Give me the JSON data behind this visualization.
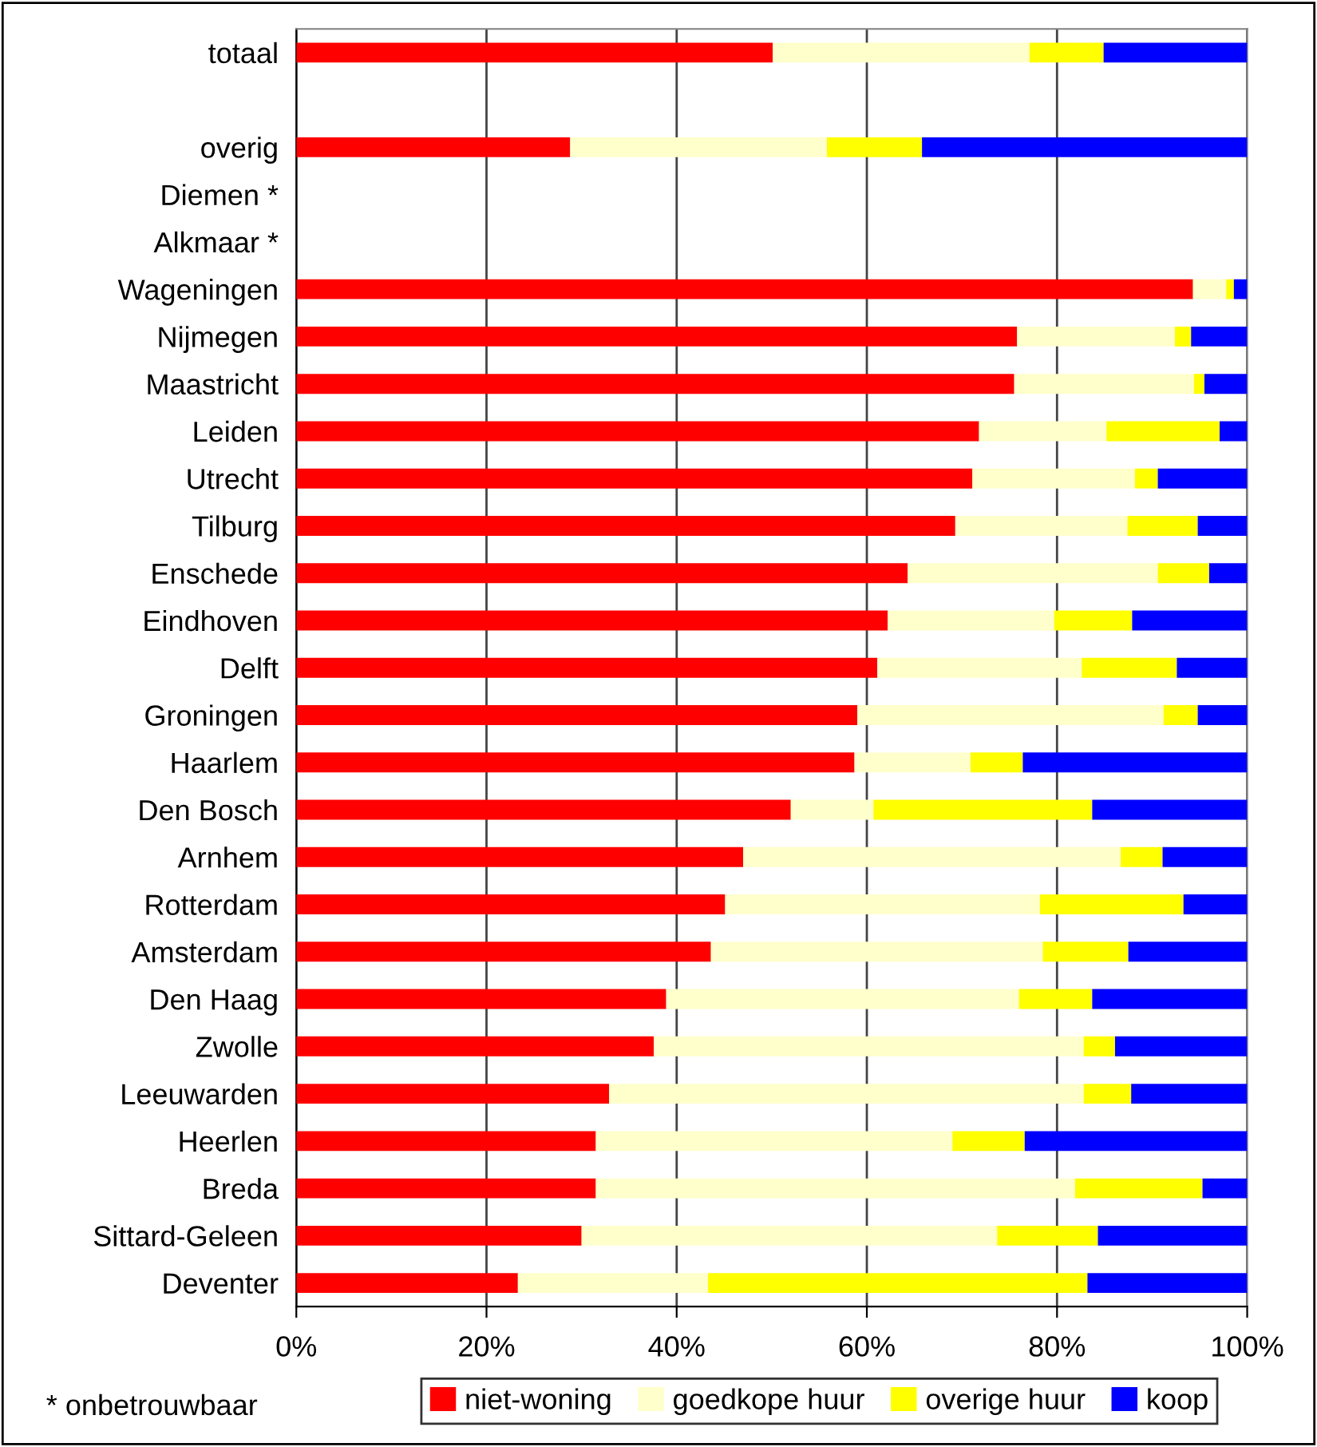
{
  "chart_data": {
    "type": "bar",
    "orientation": "horizontal",
    "stacked": true,
    "categories": [
      "totaal",
      null,
      "overig",
      "Diemen *",
      "Alkmaar *",
      "Wageningen",
      "Nijmegen",
      "Maastricht",
      "Leiden",
      "Utrecht",
      "Tilburg",
      "Enschede",
      "Eindhoven",
      "Delft",
      "Groningen",
      "Haarlem",
      "Den Bosch",
      "Arnhem",
      "Rotterdam",
      "Amsterdam",
      "Den Haag",
      "Zwolle",
      "Leeuwarden",
      "Heerlen",
      "Breda",
      "Sittard-Geleen",
      "Deventer"
    ],
    "series": [
      {
        "name": "niet-woning",
        "color": "#ff0000",
        "values": [
          50.1,
          null,
          28.8,
          null,
          null,
          94.3,
          75.8,
          75.5,
          71.8,
          71.1,
          69.3,
          64.3,
          62.2,
          61.1,
          59.0,
          58.7,
          52.0,
          47.0,
          45.1,
          43.6,
          38.9,
          37.6,
          32.9,
          31.5,
          31.5,
          30.0,
          23.3
        ]
      },
      {
        "name": "goedkope huur",
        "color": "#ffffcc",
        "values": [
          27.0,
          null,
          27.0,
          null,
          null,
          3.5,
          16.6,
          18.9,
          13.4,
          17.1,
          18.1,
          26.3,
          17.5,
          21.5,
          32.2,
          12.2,
          8.7,
          39.7,
          33.1,
          34.9,
          37.1,
          45.2,
          49.9,
          37.5,
          50.4,
          43.7,
          20.0
        ]
      },
      {
        "name": "overige huur",
        "color": "#ffff00",
        "values": [
          7.8,
          null,
          10.0,
          null,
          null,
          0.8,
          1.7,
          1.1,
          11.9,
          2.4,
          7.4,
          5.4,
          8.2,
          10.0,
          3.6,
          5.5,
          23.0,
          4.4,
          15.1,
          9.0,
          7.7,
          3.3,
          5.0,
          7.6,
          13.4,
          10.6,
          39.9
        ]
      },
      {
        "name": "koop",
        "color": "#0000ff",
        "values": [
          15.1,
          null,
          34.2,
          null,
          null,
          1.4,
          5.9,
          4.5,
          2.9,
          9.4,
          5.2,
          4.0,
          12.1,
          7.4,
          5.2,
          23.6,
          16.3,
          8.9,
          6.7,
          12.5,
          16.3,
          13.9,
          12.2,
          23.4,
          4.7,
          15.7,
          16.8
        ]
      }
    ],
    "xlim": [
      0,
      100
    ],
    "xticks": [
      {
        "value": 0,
        "label": "0%"
      },
      {
        "value": 20,
        "label": "20%"
      },
      {
        "value": 40,
        "label": "40%"
      },
      {
        "value": 60,
        "label": "60%"
      },
      {
        "value": 80,
        "label": "80%"
      },
      {
        "value": 100,
        "label": "100%"
      }
    ],
    "grid": "x",
    "legend": "bottom",
    "annotations": [
      "* onbetrouwbaar"
    ]
  }
}
